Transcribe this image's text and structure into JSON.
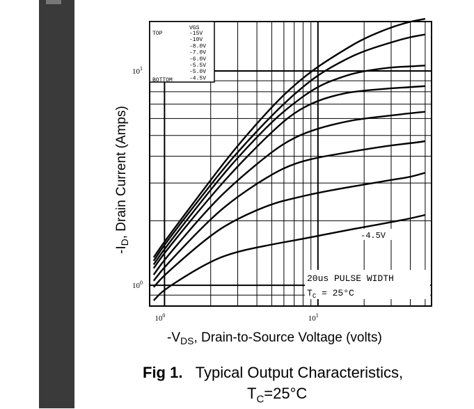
{
  "chart_data": {
    "type": "line",
    "x_scale": "log",
    "y_scale": "log",
    "xlim": [
      0.8,
      55
    ],
    "ylim": [
      0.8,
      17
    ],
    "xlabel_main": "-V",
    "xlabel_sub": "DS",
    "xlabel_rest": ", Drain-to-Source Voltage (volts)",
    "ylabel_main": "-I",
    "ylabel_sub": "D",
    "ylabel_rest": ", Drain Current (Amps)",
    "x_ticks": [
      {
        "value": 1,
        "base": "10",
        "exp": "0"
      },
      {
        "value": 10,
        "base": "10",
        "exp": "1"
      }
    ],
    "y_ticks": [
      {
        "value": 1,
        "base": "10",
        "exp": "0"
      },
      {
        "value": 10,
        "base": "10",
        "exp": "1"
      }
    ],
    "legend": {
      "header": "VGS",
      "top_label": "TOP",
      "bottom_label": "BOTTOM",
      "entries": [
        "-15V",
        "-10V",
        "-8.0V",
        "-7.0V",
        "-6.0V",
        "-5.5V",
        "-5.0V",
        "-4.5V"
      ],
      "placement": "top-left"
    },
    "annotations": {
      "curve_label": "-4.5V",
      "pulse": "20us PULSE WIDTH",
      "tc_main": "T",
      "tc_sub": "C",
      "tc_rest": " = 25°C"
    },
    "series": [
      {
        "name": "-15V",
        "points": [
          [
            0.85,
            1.35
          ],
          [
            1,
            1.6
          ],
          [
            2,
            3.1
          ],
          [
            3,
            4.5
          ],
          [
            5,
            6.8
          ],
          [
            7,
            8.6
          ],
          [
            10,
            10.5
          ],
          [
            15,
            12.6
          ],
          [
            20,
            14.2
          ],
          [
            30,
            16.0
          ],
          [
            40,
            17.0
          ],
          [
            50,
            17.5
          ]
        ]
      },
      {
        "name": "-10V",
        "points": [
          [
            0.85,
            1.3
          ],
          [
            1,
            1.55
          ],
          [
            2,
            2.95
          ],
          [
            3,
            4.2
          ],
          [
            5,
            6.2
          ],
          [
            7,
            7.8
          ],
          [
            10,
            9.6
          ],
          [
            15,
            11.3
          ],
          [
            20,
            12.4
          ],
          [
            30,
            13.6
          ],
          [
            40,
            14.4
          ],
          [
            50,
            14.8
          ]
        ]
      },
      {
        "name": "-8.0V",
        "points": [
          [
            0.85,
            1.25
          ],
          [
            1,
            1.48
          ],
          [
            2,
            2.8
          ],
          [
            3,
            3.95
          ],
          [
            5,
            5.8
          ],
          [
            7,
            7.1
          ],
          [
            10,
            8.5
          ],
          [
            15,
            9.5
          ],
          [
            20,
            10.0
          ],
          [
            30,
            10.4
          ],
          [
            40,
            10.5
          ],
          [
            50,
            10.6
          ]
        ]
      },
      {
        "name": "-7.0V",
        "points": [
          [
            0.85,
            1.2
          ],
          [
            1,
            1.42
          ],
          [
            2,
            2.6
          ],
          [
            3,
            3.6
          ],
          [
            5,
            5.2
          ],
          [
            7,
            6.4
          ],
          [
            10,
            7.3
          ],
          [
            15,
            7.9
          ],
          [
            20,
            8.1
          ],
          [
            30,
            8.3
          ],
          [
            40,
            8.4
          ],
          [
            50,
            8.5
          ]
        ]
      },
      {
        "name": "-6.0V",
        "points": [
          [
            0.85,
            1.12
          ],
          [
            1,
            1.32
          ],
          [
            2,
            2.35
          ],
          [
            3,
            3.1
          ],
          [
            5,
            4.2
          ],
          [
            7,
            4.9
          ],
          [
            10,
            5.4
          ],
          [
            15,
            5.8
          ],
          [
            20,
            6.0
          ],
          [
            30,
            6.2
          ],
          [
            40,
            6.35
          ],
          [
            50,
            6.45
          ]
        ]
      },
      {
        "name": "-5.5V",
        "points": [
          [
            0.85,
            1.05
          ],
          [
            1,
            1.22
          ],
          [
            2,
            2.05
          ],
          [
            3,
            2.6
          ],
          [
            5,
            3.3
          ],
          [
            7,
            3.7
          ],
          [
            10,
            3.95
          ],
          [
            15,
            4.15
          ],
          [
            20,
            4.3
          ],
          [
            30,
            4.5
          ],
          [
            40,
            4.6
          ],
          [
            50,
            4.7
          ]
        ]
      },
      {
        "name": "-5.0V",
        "points": [
          [
            0.85,
            0.98
          ],
          [
            1,
            1.12
          ],
          [
            2,
            1.72
          ],
          [
            3,
            2.05
          ],
          [
            5,
            2.4
          ],
          [
            7,
            2.55
          ],
          [
            10,
            2.7
          ],
          [
            15,
            2.85
          ],
          [
            20,
            2.95
          ],
          [
            30,
            3.1
          ],
          [
            40,
            3.2
          ],
          [
            50,
            3.35
          ]
        ]
      },
      {
        "name": "-4.5V",
        "points": [
          [
            0.85,
            0.85
          ],
          [
            1,
            0.96
          ],
          [
            2,
            1.3
          ],
          [
            3,
            1.44
          ],
          [
            5,
            1.55
          ],
          [
            7,
            1.62
          ],
          [
            10,
            1.7
          ],
          [
            15,
            1.8
          ],
          [
            20,
            1.87
          ],
          [
            30,
            1.97
          ],
          [
            40,
            2.05
          ],
          [
            50,
            2.13
          ]
        ]
      }
    ],
    "grid": true
  },
  "caption": {
    "fig": "Fig 1.",
    "line1": "Typical Output Characteristics,",
    "line2_main": "T",
    "line2_sub": "C",
    "line2_rest": "=25°C"
  },
  "colors": {
    "ink": "#000000",
    "background": "#ffffff",
    "sidebar": "#3a3a3a"
  }
}
